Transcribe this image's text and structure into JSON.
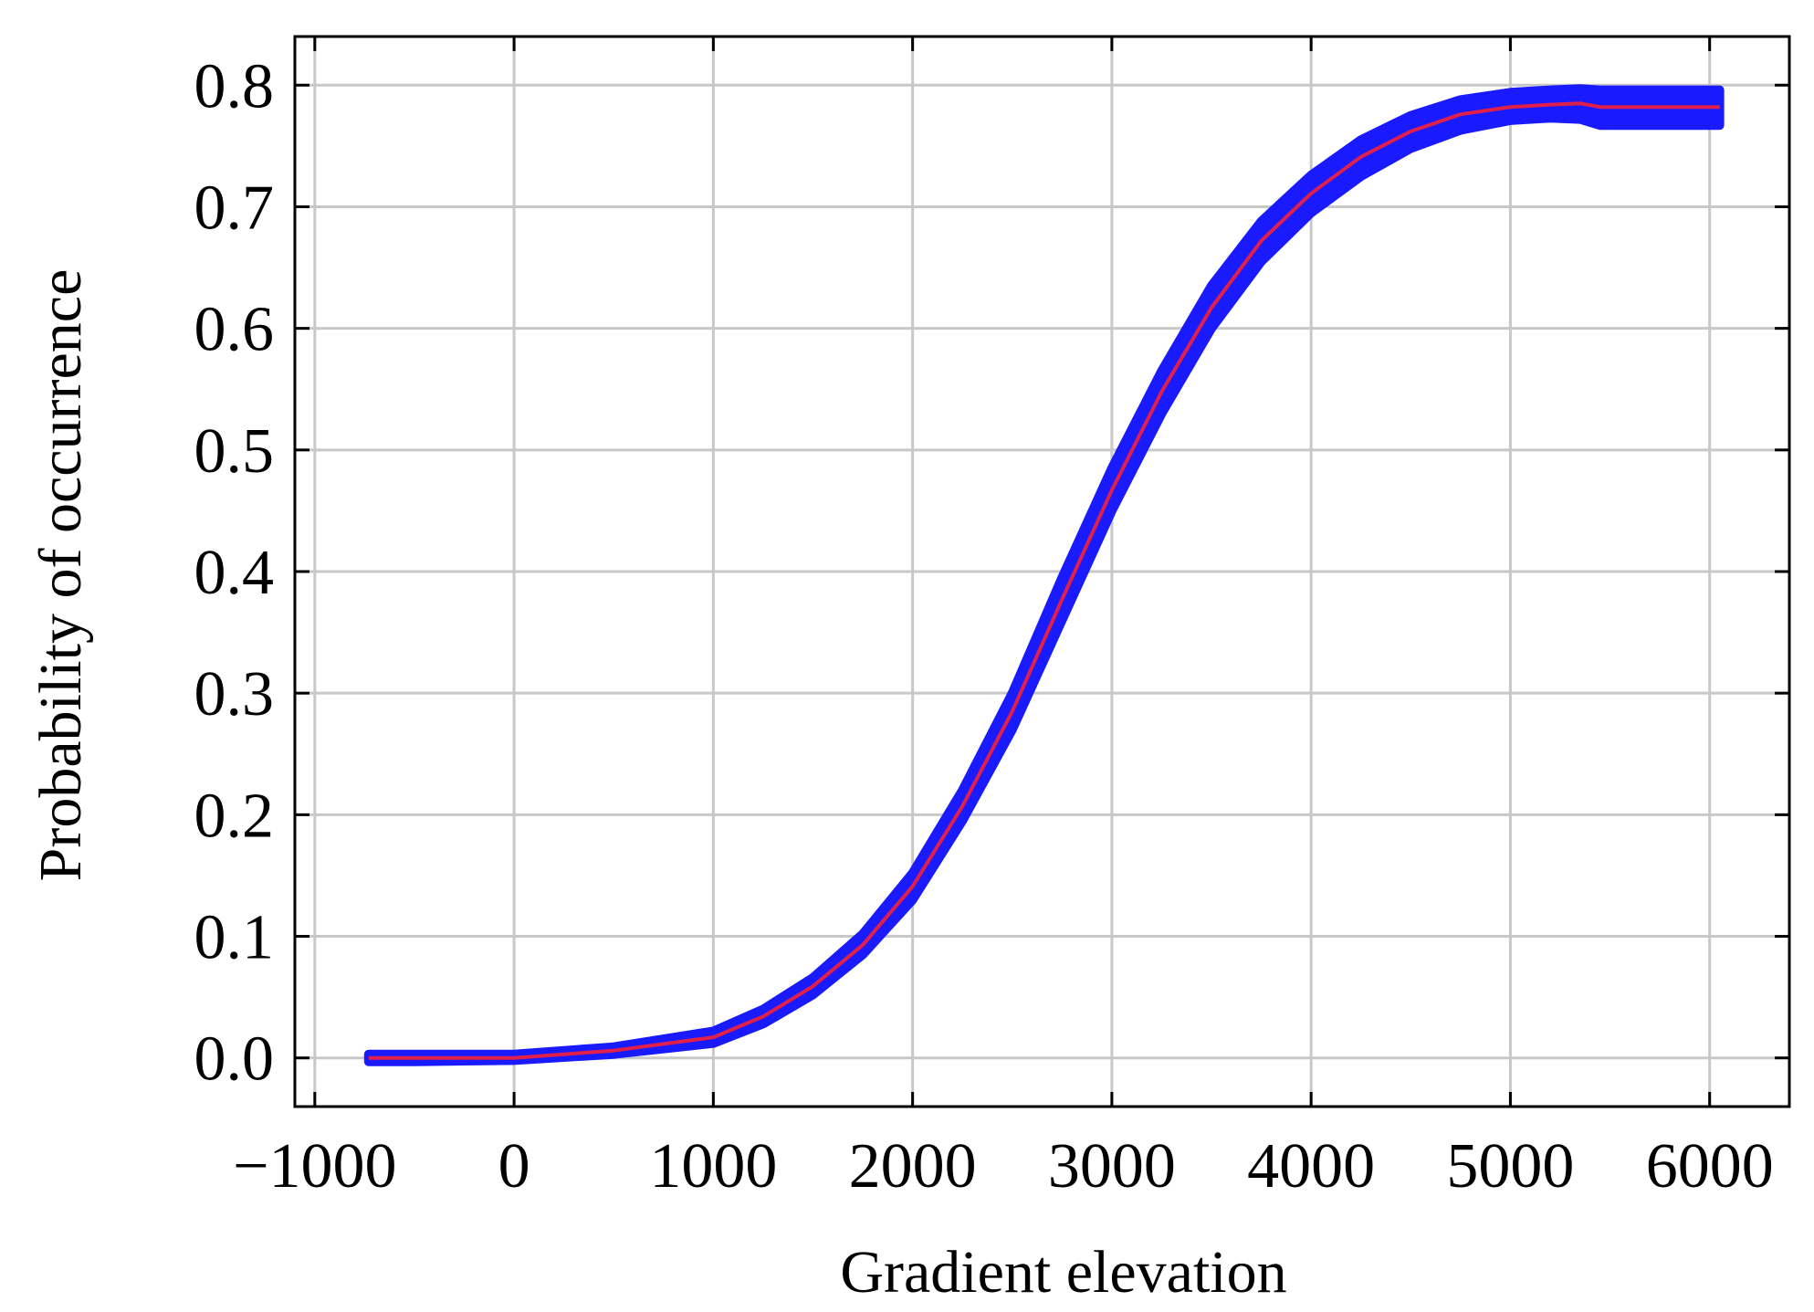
{
  "chart_data": {
    "type": "line",
    "title": "",
    "xlabel": "Gradient elevation",
    "ylabel": "Probability of occurrence",
    "xlim": [
      -1100,
      6400
    ],
    "ylim": [
      -0.04,
      0.84
    ],
    "grid": true,
    "legend": "none",
    "x_ticks": [
      -1000,
      0,
      1000,
      2000,
      3000,
      4000,
      5000,
      6000
    ],
    "x_tick_labels": [
      "−1000",
      "0",
      "1000",
      "2000",
      "3000",
      "4000",
      "5000",
      "6000"
    ],
    "y_ticks": [
      0.0,
      0.1,
      0.2,
      0.3,
      0.4,
      0.5,
      0.6,
      0.7,
      0.8
    ],
    "y_tick_labels": [
      "0.0",
      "0.1",
      "0.2",
      "0.3",
      "0.4",
      "0.5",
      "0.6",
      "0.7",
      "0.8"
    ],
    "colors": {
      "band": "#1a1aff",
      "line": "#e0204a",
      "grid": "#c8c8c8",
      "axis": "#000000"
    },
    "series": [
      {
        "role": "confidence_band",
        "x": [
          -730,
          -500,
          0,
          500,
          1000,
          1250,
          1500,
          1750,
          2000,
          2250,
          2500,
          2750,
          3000,
          3250,
          3500,
          3750,
          4000,
          4250,
          4500,
          4750,
          5000,
          5200,
          5350,
          5450,
          5700,
          6050
        ],
        "lower": [
          -0.003,
          -0.003,
          -0.002,
          0.003,
          0.012,
          0.028,
          0.052,
          0.085,
          0.13,
          0.195,
          0.27,
          0.36,
          0.45,
          0.53,
          0.6,
          0.655,
          0.695,
          0.725,
          0.748,
          0.763,
          0.771,
          0.773,
          0.772,
          0.767,
          0.767,
          0.767
        ],
        "upper": [
          0.003,
          0.003,
          0.003,
          0.009,
          0.022,
          0.04,
          0.066,
          0.102,
          0.152,
          0.22,
          0.3,
          0.395,
          0.485,
          0.565,
          0.635,
          0.688,
          0.726,
          0.755,
          0.775,
          0.788,
          0.794,
          0.796,
          0.797,
          0.796,
          0.796,
          0.796
        ]
      },
      {
        "role": "fitted_curve",
        "x": [
          -730,
          -500,
          0,
          500,
          1000,
          1250,
          1500,
          1750,
          2000,
          2250,
          2500,
          2750,
          3000,
          3250,
          3500,
          3750,
          4000,
          4250,
          4500,
          4750,
          5000,
          5200,
          5350,
          5450,
          5700,
          6050
        ],
        "y": [
          0.0,
          0.0,
          0.0,
          0.006,
          0.017,
          0.034,
          0.059,
          0.093,
          0.141,
          0.207,
          0.285,
          0.377,
          0.467,
          0.548,
          0.617,
          0.672,
          0.711,
          0.741,
          0.762,
          0.776,
          0.782,
          0.784,
          0.785,
          0.782,
          0.782,
          0.782
        ]
      }
    ]
  }
}
